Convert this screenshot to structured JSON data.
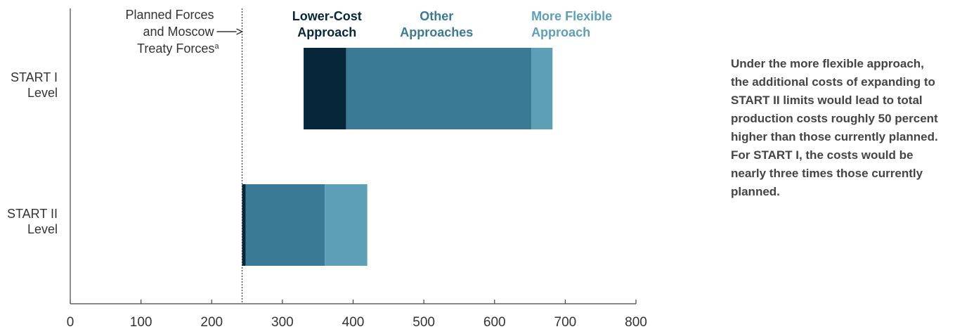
{
  "chart_data": {
    "type": "bar",
    "orientation": "horizontal",
    "stacked": true,
    "categories": [
      "START I Level",
      "START II Level"
    ],
    "category_lines": [
      [
        "START I",
        "Level"
      ],
      [
        "START II",
        "Level"
      ]
    ],
    "series": [
      {
        "name": "Lower-Cost Approach",
        "name_lines": [
          "Lower-Cost",
          "Approach"
        ],
        "color": "#06263a",
        "start": [
          330,
          243
        ],
        "end": [
          390,
          248
        ]
      },
      {
        "name": "Other Approaches",
        "name_lines": [
          "Other",
          "Approaches"
        ],
        "color": "#3b7a94",
        "start": [
          390,
          248
        ],
        "end": [
          652,
          360
        ]
      },
      {
        "name": "More Flexible Approach",
        "name_lines": [
          "More Flexible",
          "Approach"
        ],
        "color": "#5e9fb8",
        "start": [
          652,
          360
        ],
        "end": [
          682,
          420
        ]
      }
    ],
    "reference_line": {
      "value": 243,
      "label_lines": [
        "Planned Forces",
        "and Moscow",
        "Treaty Forces"
      ],
      "label_suffix": "a",
      "style": "dotted"
    },
    "xlim": [
      0,
      800
    ],
    "xticks": [
      0,
      100,
      200,
      300,
      400,
      500,
      600,
      700,
      800
    ],
    "xlabel": "",
    "ylabel": "",
    "grid": false
  },
  "note": {
    "text": "Under the more flexible approach, the additional costs of expanding to START II limits would lead to total production costs roughly 50 percent higher than those currently planned. For START I, the costs would be nearly three times those currently planned."
  }
}
